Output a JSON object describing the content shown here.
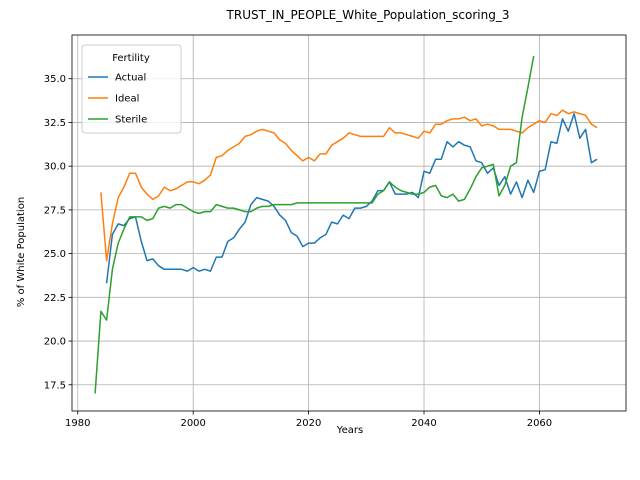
{
  "chart_data": {
    "type": "line",
    "title": "TRUST_IN_PEOPLE_White_Population_scoring_3",
    "xlabel": "Years",
    "ylabel": "% of White Population",
    "xlim": [
      1979,
      2075
    ],
    "ylim": [
      16,
      37.5
    ],
    "xticks": [
      1980,
      2000,
      2020,
      2040,
      2060
    ],
    "yticks": [
      17.5,
      20.0,
      22.5,
      25.0,
      27.5,
      30.0,
      32.5,
      35.0
    ],
    "xtick_labels": [
      "1980",
      "2000",
      "2020",
      "2040",
      "2060"
    ],
    "ytick_labels": [
      "17.5",
      "20.0",
      "22.5",
      "25.0",
      "27.5",
      "30.0",
      "32.5",
      "35.0"
    ],
    "grid": true,
    "legend": {
      "title": "Fertility",
      "position": "upper-left"
    },
    "series": [
      {
        "name": "Actual",
        "color": "#1f77b4",
        "x": [
          1985,
          1986,
          1987,
          1988,
          1989,
          1990,
          1991,
          1992,
          1993,
          1994,
          1995,
          1996,
          1997,
          1998,
          1999,
          2000,
          2001,
          2002,
          2003,
          2004,
          2005,
          2006,
          2007,
          2008,
          2009,
          2010,
          2011,
          2012,
          2013,
          2014,
          2015,
          2016,
          2017,
          2018,
          2019,
          2020,
          2021,
          2022,
          2023,
          2024,
          2025,
          2026,
          2027,
          2028,
          2029,
          2030,
          2031,
          2032,
          2033,
          2034,
          2035,
          2036,
          2037,
          2038,
          2039,
          2040,
          2041,
          2042,
          2043,
          2044,
          2045,
          2046,
          2047,
          2048,
          2049,
          2050,
          2051,
          2052,
          2053,
          2054,
          2055,
          2056,
          2057,
          2058,
          2059,
          2060,
          2061,
          2062,
          2063,
          2064,
          2065,
          2066,
          2067,
          2068,
          2069,
          2070
        ],
        "y": [
          23.3,
          26.1,
          26.7,
          26.6,
          27.0,
          27.1,
          25.7,
          24.6,
          24.7,
          24.3,
          24.1,
          24.1,
          24.1,
          24.1,
          24.0,
          24.2,
          24.0,
          24.1,
          24.0,
          24.8,
          24.8,
          25.7,
          25.9,
          26.4,
          26.8,
          27.8,
          28.2,
          28.1,
          28.0,
          27.7,
          27.2,
          26.9,
          26.2,
          26.0,
          25.4,
          25.6,
          25.6,
          25.9,
          26.1,
          26.8,
          26.7,
          27.2,
          27.0,
          27.6,
          27.6,
          27.7,
          28.0,
          28.6,
          28.6,
          29.1,
          28.4,
          28.4,
          28.4,
          28.5,
          28.2,
          29.7,
          29.6,
          30.4,
          30.4,
          31.4,
          31.1,
          31.4,
          31.2,
          31.1,
          30.3,
          30.2,
          29.6,
          29.9,
          28.9,
          29.4,
          28.4,
          29.1,
          28.2,
          29.2,
          28.5,
          29.7,
          29.8,
          31.4,
          31.3,
          32.7,
          32.0,
          33.0,
          31.6,
          32.1,
          30.2,
          30.4
        ]
      },
      {
        "name": "Ideal",
        "color": "#ff7f0e",
        "x": [
          1984,
          1985,
          1986,
          1987,
          1988,
          1989,
          1990,
          1991,
          1992,
          1993,
          1994,
          1995,
          1996,
          1997,
          1998,
          1999,
          2000,
          2001,
          2002,
          2003,
          2004,
          2005,
          2006,
          2007,
          2008,
          2009,
          2010,
          2011,
          2012,
          2013,
          2014,
          2015,
          2016,
          2017,
          2018,
          2019,
          2020,
          2021,
          2022,
          2023,
          2024,
          2025,
          2026,
          2027,
          2028,
          2029,
          2030,
          2031,
          2032,
          2033,
          2034,
          2035,
          2036,
          2037,
          2038,
          2039,
          2040,
          2041,
          2042,
          2043,
          2044,
          2045,
          2046,
          2047,
          2048,
          2049,
          2050,
          2051,
          2052,
          2053,
          2054,
          2055,
          2056,
          2057,
          2058,
          2059,
          2060,
          2061,
          2062,
          2063,
          2064,
          2065,
          2066,
          2067,
          2068,
          2069,
          2070
        ],
        "y": [
          28.5,
          24.6,
          26.7,
          28.2,
          28.8,
          29.6,
          29.6,
          28.8,
          28.4,
          28.1,
          28.3,
          28.8,
          28.6,
          28.7,
          28.9,
          29.1,
          29.1,
          29.0,
          29.2,
          29.5,
          30.5,
          30.6,
          30.9,
          31.1,
          31.3,
          31.7,
          31.8,
          32.0,
          32.1,
          32.0,
          31.9,
          31.5,
          31.3,
          30.9,
          30.6,
          30.3,
          30.5,
          30.3,
          30.7,
          30.7,
          31.2,
          31.4,
          31.6,
          31.9,
          31.8,
          31.7,
          31.7,
          31.7,
          31.7,
          31.7,
          32.2,
          31.9,
          31.9,
          31.8,
          31.7,
          31.6,
          32.0,
          31.9,
          32.4,
          32.4,
          32.6,
          32.7,
          32.7,
          32.8,
          32.6,
          32.7,
          32.3,
          32.4,
          32.3,
          32.1,
          32.1,
          32.1,
          32.0,
          31.9,
          32.2,
          32.4,
          32.6,
          32.5,
          33.0,
          32.9,
          33.2,
          33.0,
          33.1,
          33.0,
          32.9,
          32.4,
          32.2
        ]
      },
      {
        "name": "Sterile",
        "color": "#2ca02c",
        "x": [
          1983,
          1984,
          1985,
          1986,
          1987,
          1988,
          1989,
          1990,
          1991,
          1992,
          1993,
          1994,
          1995,
          1996,
          1997,
          1998,
          1999,
          2000,
          2001,
          2002,
          2003,
          2004,
          2005,
          2006,
          2007,
          2008,
          2009,
          2010,
          2011,
          2012,
          2013,
          2014,
          2015,
          2016,
          2017,
          2018,
          2019,
          2020,
          2021,
          2022,
          2023,
          2024,
          2025,
          2026,
          2027,
          2028,
          2029,
          2030,
          2031,
          2032,
          2033,
          2034,
          2035,
          2036,
          2037,
          2038,
          2039,
          2040,
          2041,
          2042,
          2043,
          2044,
          2045,
          2046,
          2047,
          2048,
          2049,
          2050,
          2051,
          2052,
          2053,
          2054,
          2055,
          2056,
          2057,
          2058,
          2059
        ],
        "y": [
          17.0,
          21.7,
          21.2,
          24.1,
          25.6,
          26.4,
          27.1,
          27.1,
          27.1,
          26.9,
          27.0,
          27.6,
          27.7,
          27.6,
          27.8,
          27.8,
          27.6,
          27.4,
          27.3,
          27.4,
          27.4,
          27.8,
          27.7,
          27.6,
          27.6,
          27.5,
          27.4,
          27.4,
          27.6,
          27.7,
          27.7,
          27.8,
          27.8,
          27.8,
          27.8,
          27.9,
          27.9,
          27.9,
          27.9,
          27.9,
          27.9,
          27.9,
          27.9,
          27.9,
          27.9,
          27.9,
          27.9,
          27.9,
          27.9,
          28.4,
          28.6,
          29.1,
          28.8,
          28.6,
          28.5,
          28.4,
          28.4,
          28.5,
          28.8,
          28.9,
          28.3,
          28.2,
          28.4,
          28.0,
          28.1,
          28.7,
          29.4,
          29.9,
          30.0,
          30.1,
          28.3,
          28.9,
          30.0,
          30.2,
          32.8,
          34.5,
          36.3
        ]
      }
    ]
  }
}
